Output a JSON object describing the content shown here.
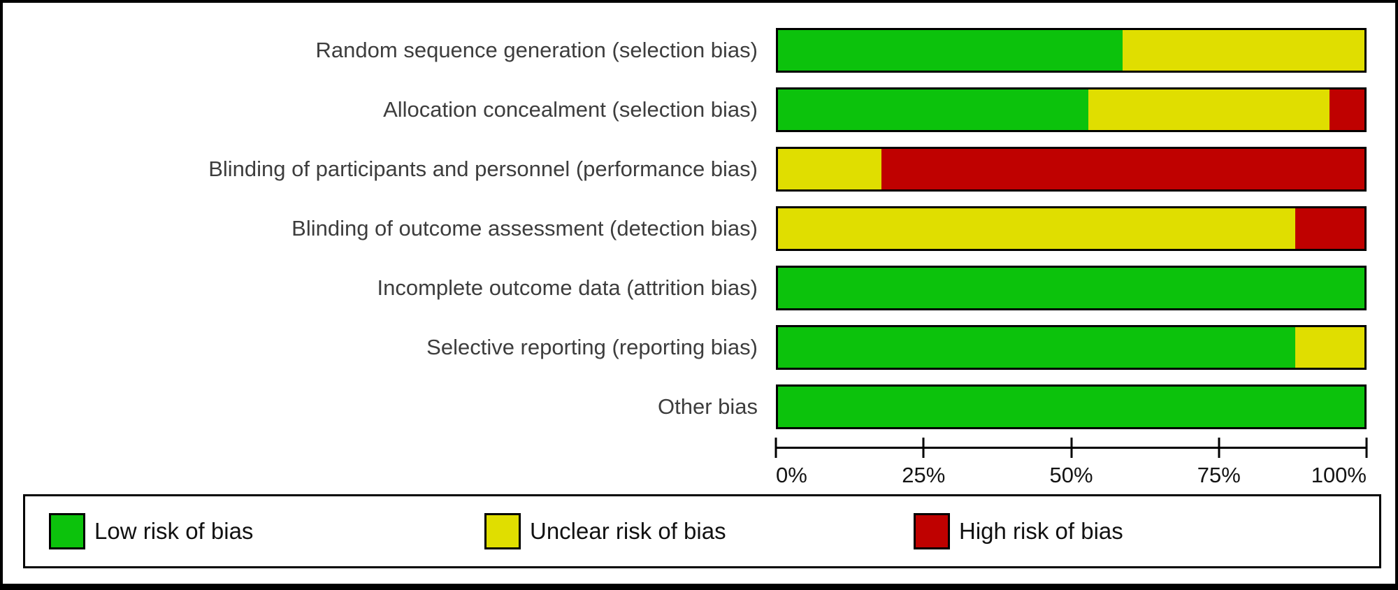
{
  "chart_data": {
    "type": "bar",
    "variant": "horizontal-stacked-percentage",
    "title": "",
    "xlabel": "",
    "ylabel": "",
    "xlim": [
      0,
      100
    ],
    "grid": false,
    "legend_position": "bottom",
    "x_ticks": [
      "0%",
      "25%",
      "50%",
      "75%",
      "100%"
    ],
    "categories": [
      "Random sequence generation (selection bias)",
      "Allocation concealment (selection bias)",
      "Blinding of participants and personnel (performance bias)",
      "Blinding of outcome assessment (detection bias)",
      "Incomplete outcome data (attrition bias)",
      "Selective reporting (reporting bias)",
      "Other bias"
    ],
    "series": [
      {
        "name": "Low risk of bias",
        "key": "low",
        "color": "#0cc20c",
        "values": [
          58.8,
          52.9,
          0,
          0,
          100,
          88.2,
          100
        ]
      },
      {
        "name": "Unclear risk of bias",
        "key": "unclear",
        "color": "#e0de00",
        "values": [
          41.2,
          41.2,
          17.6,
          88.2,
          0,
          11.8,
          0
        ]
      },
      {
        "name": "High risk of bias",
        "key": "high",
        "color": "#bf0100",
        "values": [
          0,
          5.9,
          82.4,
          11.8,
          0,
          0,
          0
        ]
      }
    ]
  },
  "colors": {
    "low_risk": "#0cc20c",
    "unclear_risk": "#e0de00",
    "high_risk": "#bf0100",
    "frame_border": "#000000",
    "label_text": "#3d3d3d"
  }
}
